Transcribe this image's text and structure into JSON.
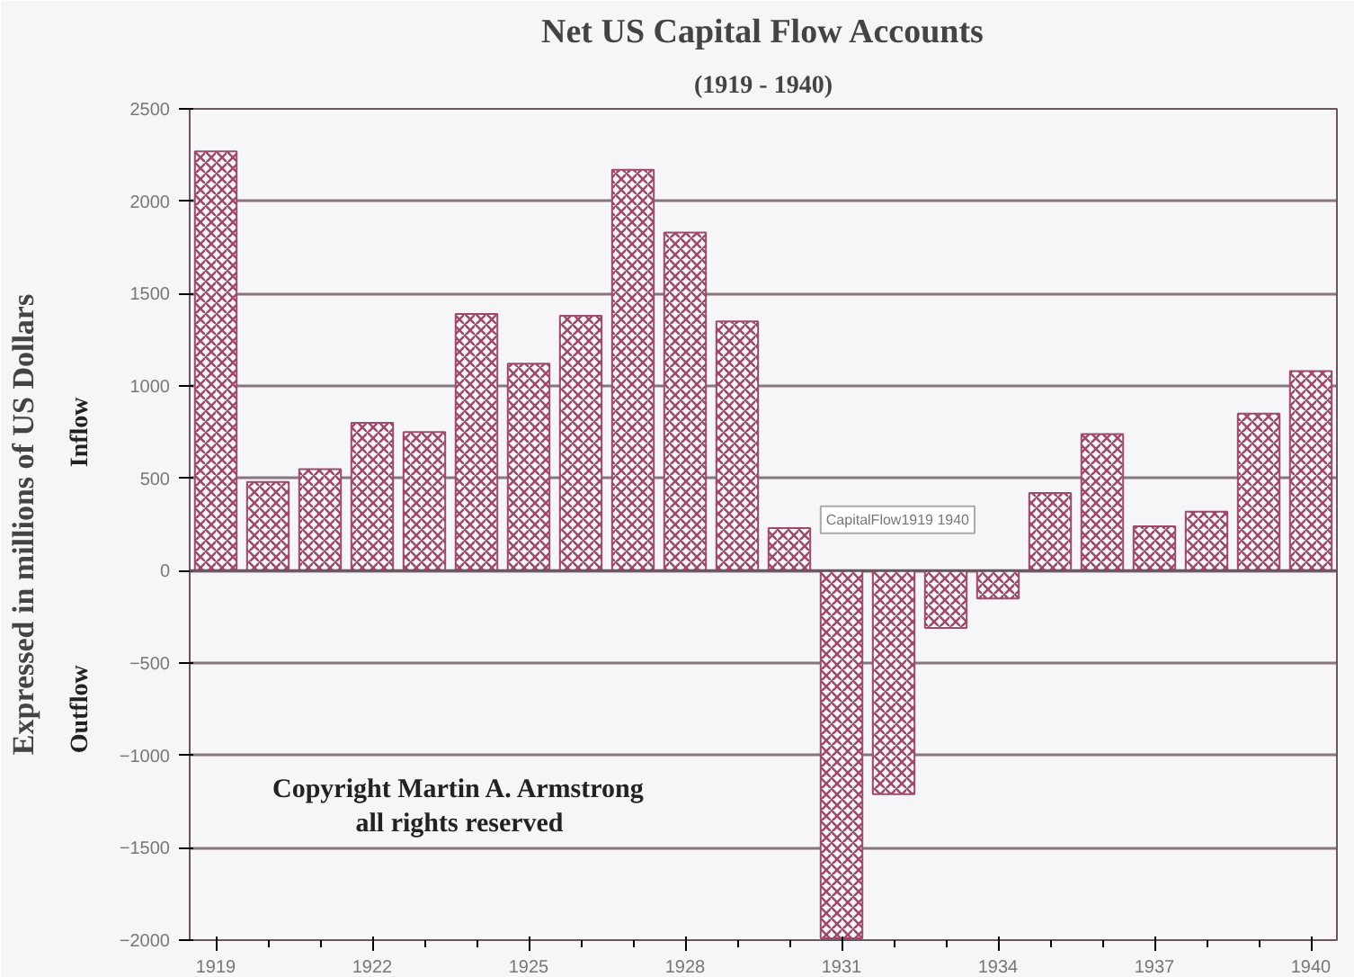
{
  "chart_data": {
    "type": "bar",
    "title": "Net US Capital Flow Accounts",
    "subtitle": "(1919 - 1940)",
    "ylabel": "Expressed in millions of US Dollars",
    "x": [
      1919,
      1920,
      1921,
      1922,
      1923,
      1924,
      1925,
      1926,
      1927,
      1928,
      1929,
      1930,
      1931,
      1932,
      1933,
      1934,
      1935,
      1936,
      1937,
      1938,
      1939,
      1940
    ],
    "values": [
      2270,
      480,
      550,
      800,
      750,
      1390,
      1120,
      1380,
      2170,
      1830,
      1350,
      230,
      -1990,
      -1210,
      -310,
      -150,
      420,
      740,
      240,
      320,
      850,
      1080
    ],
    "color": "#9c4a6e",
    "xlim": [
      1918.5,
      1940.5
    ],
    "xticks": [
      1919,
      1922,
      1925,
      1928,
      1931,
      1934,
      1937,
      1940
    ],
    "ylim": [
      -2000,
      2500
    ],
    "yticks": [
      -2000,
      -1500,
      -1000,
      -500,
      0,
      500,
      1000,
      1500,
      2000,
      2500
    ],
    "grid": "y",
    "annotations": [
      "Inflow",
      "Outflow",
      "Copyright Martin A. Armstrong\nall rights reserved",
      "CapitalFlow1919 1940"
    ]
  }
}
